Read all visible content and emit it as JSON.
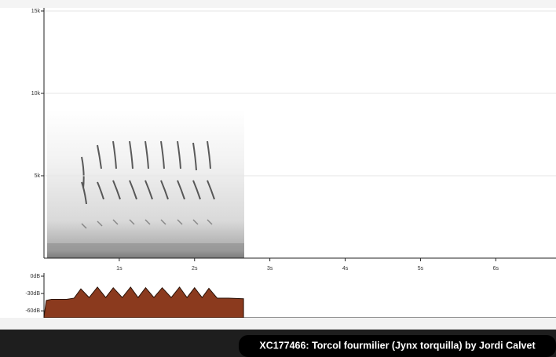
{
  "chart_data": [
    {
      "type": "spectrogram",
      "xlim": [
        0,
        6.8
      ],
      "ylim": [
        0,
        15000
      ],
      "xticks": [
        {
          "value": 1,
          "label": "1s"
        },
        {
          "value": 2,
          "label": "2s"
        },
        {
          "value": 3,
          "label": "3s"
        },
        {
          "value": 4,
          "label": "4s"
        },
        {
          "value": 5,
          "label": "5s"
        },
        {
          "value": 6,
          "label": "6s"
        }
      ],
      "yticks": [
        {
          "value": 5000,
          "label": "5k"
        },
        {
          "value": 10000,
          "label": "10k"
        },
        {
          "value": 15000,
          "label": "15k"
        }
      ],
      "grid": true
    },
    {
      "type": "area",
      "x": [
        0,
        0.03,
        0.1,
        0.3,
        0.4,
        0.49,
        0.6,
        0.71,
        0.82,
        0.92,
        1.04,
        1.15,
        1.25,
        1.35,
        1.46,
        1.57,
        1.69,
        1.8,
        1.9,
        2.0,
        2.1,
        2.19,
        2.3,
        2.45,
        2.65
      ],
      "values": [
        -71,
        -42,
        -40,
        -40,
        -38,
        -22,
        -37,
        -19,
        -37,
        -20,
        -37,
        -19,
        -37,
        -20,
        -37,
        -20,
        -37,
        -19,
        -37,
        -20,
        -37,
        -21,
        -38,
        -38,
        -39
      ],
      "color": "#8b3a1e",
      "xlim": [
        0,
        6.8
      ],
      "ylim": [
        -72,
        0
      ],
      "yticks": [
        {
          "value": 0,
          "label": "0dB"
        },
        {
          "value": -30,
          "label": "-30dB"
        },
        {
          "value": -60,
          "label": "-60dB"
        }
      ]
    }
  ],
  "caption": "XC177466: Torcol fourmilier (Jynx torquilla) by Jordi Calvet"
}
